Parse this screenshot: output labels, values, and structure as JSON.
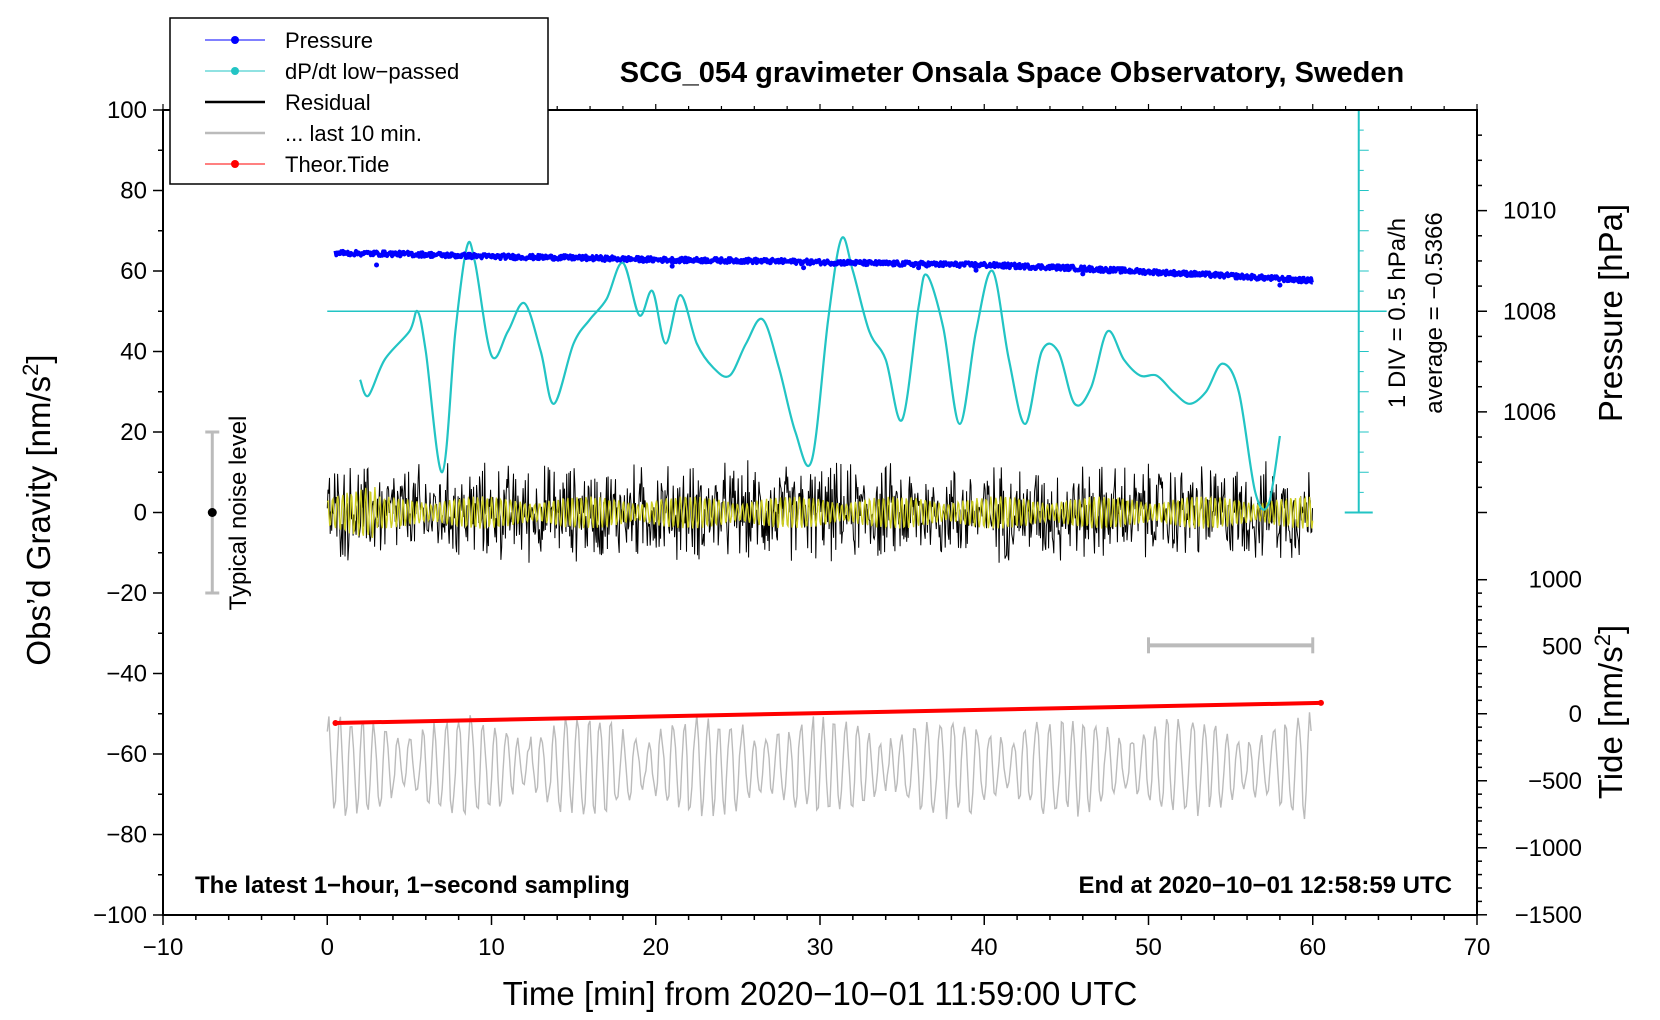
{
  "chart_data": {
    "type": "line",
    "title": "SCG_054 gravimeter Onsala Space Observatory, Sweden",
    "xlabel": "Time [min] from 2020−10−01 11:59:00 UTC",
    "ylabel_left": "Obs’d Gravity [nm/s²]",
    "ylabel_right_pressure": "Pressure [hPa]",
    "ylabel_right_tide": "Tide [nm/s²]",
    "xlim": [
      -10,
      70
    ],
    "ylim": [
      -100,
      100
    ],
    "xticks": [
      -10,
      0,
      10,
      20,
      30,
      40,
      50,
      60,
      70
    ],
    "xtick_labels": [
      "−10",
      "0",
      "10",
      "20",
      "30",
      "40",
      "50",
      "60",
      "70"
    ],
    "yticks": [
      100,
      80,
      60,
      40,
      20,
      0,
      -20,
      -40,
      -60,
      -80,
      -100
    ],
    "ytick_labels": [
      "100",
      "80",
      "60",
      "40",
      "20",
      "0",
      "−20",
      "−40",
      "−60",
      "−80",
      "−100"
    ],
    "pressure_axis": {
      "ticks": [
        1010,
        1008,
        1006
      ],
      "tick_labels": [
        "1010",
        "1008",
        "1006"
      ],
      "gravity_at_1008": 50,
      "gravity_per_hPa": 12.5
    },
    "tide_axis": {
      "ticks": [
        1000,
        500,
        0,
        -500,
        -1000,
        -1500
      ],
      "tick_labels": [
        "1000",
        "500",
        "0",
        "−500",
        "−1000",
        "−1500"
      ],
      "gravity_at_0": -50,
      "gravity_per_unit": 0.0333
    },
    "legend": {
      "position": "top-left",
      "entries": [
        {
          "label": "Pressure",
          "color": "#0000ff",
          "marker": "dot"
        },
        {
          "label": "dP/dt low−passed",
          "color": "#22c4c4",
          "marker": "dot"
        },
        {
          "label": "Residual",
          "color": "#000000",
          "marker": "none"
        },
        {
          "label": "... last 10 min.",
          "color": "#bbbbbb",
          "marker": "none"
        },
        {
          "label": "Theor.Tide",
          "color": "#ff0000",
          "marker": "dot"
        }
      ]
    },
    "dpdt_scale": {
      "label_div": "1 DIV = 0.5 hPa/h",
      "label_avg": "average = −0.5366",
      "zero_gravity": 50
    },
    "noise_bar": {
      "label": "Typical noise level",
      "x": -7,
      "low": -20,
      "high": 20,
      "center": 0
    },
    "ten_min_bar": {
      "x_start": 50,
      "x_end": 60,
      "y": -33
    },
    "notes": {
      "left": "The latest 1−hour, 1−second sampling",
      "right": "End at 2020−10−01 12:58:59 UTC"
    },
    "series": [
      {
        "name": "Pressure",
        "color": "#0000ff",
        "x": [
          0.5,
          5,
          10,
          15,
          20,
          25,
          30,
          35,
          40,
          45,
          50,
          55,
          60
        ],
        "y": [
          64.5,
          64.2,
          63.6,
          63.3,
          62.8,
          62.6,
          62.2,
          61.8,
          61.5,
          60.8,
          59.8,
          58.8,
          57.6
        ],
        "scatter": [
          [
            3,
            61.5
          ],
          [
            21,
            61.2
          ],
          [
            29,
            60.8
          ],
          [
            36,
            60.8
          ],
          [
            39.5,
            60.2
          ],
          [
            46,
            59.3
          ],
          [
            58,
            56.5
          ]
        ]
      },
      {
        "name": "dP/dt low-passed",
        "color": "#22c4c4",
        "x": [
          2,
          2.5,
          3.5,
          5,
          5.5,
          6,
          7,
          7.8,
          8.5,
          9,
          10,
          11,
          12,
          13,
          13.8,
          15,
          16,
          17,
          18,
          19,
          19.8,
          20.6,
          21.5,
          22.5,
          23.5,
          24.5,
          25.5,
          26.5,
          27.5,
          28.5,
          29.5,
          30.5,
          31.3,
          32,
          33,
          34,
          35,
          36,
          36.5,
          37.5,
          38.5,
          39.5,
          40.5,
          41.5,
          42.5,
          43.5,
          44.5,
          45.5,
          46.5,
          47.5,
          48.5,
          49.5,
          50.5,
          51.5,
          52.5,
          53.5,
          54.5,
          55.5,
          56.5,
          57.3,
          58
        ],
        "y": [
          33,
          29,
          38,
          45,
          50,
          40,
          10,
          45,
          66,
          62,
          39,
          45,
          52,
          40,
          27,
          42,
          48,
          53,
          62,
          49,
          55,
          42,
          54,
          42,
          36,
          34,
          42,
          48,
          36,
          20,
          13,
          48,
          68,
          60,
          45,
          38,
          23,
          51,
          59,
          46,
          22,
          45,
          60,
          38,
          22,
          40,
          40,
          27,
          31,
          45,
          38,
          34,
          34,
          30,
          27,
          30,
          37,
          30,
          5,
          2,
          19
        ]
      },
      {
        "name": "Residual",
        "color": "#000000",
        "x_start": 0,
        "x_end": 60,
        "amplitude": 14,
        "center": 0
      },
      {
        "name": "Residual smoothed",
        "color": "#cccc22",
        "x_start": 0,
        "x_end": 60,
        "amplitude": 4,
        "center": 0
      },
      {
        "name": "... last 10 min.",
        "color": "#bbbbbb",
        "x_start": 0,
        "x_end": 60,
        "amplitude": 12,
        "center": -63
      },
      {
        "name": "Theor.Tide",
        "color": "#ff0000",
        "x": [
          0.5,
          60.5
        ],
        "y": [
          -52.3,
          -47.3
        ]
      }
    ]
  },
  "colors": {
    "pressure": "#0000ff",
    "dpdt": "#22c4c4",
    "residual": "#000000",
    "residual_smooth": "#cccc22",
    "last10": "#bbbbbb",
    "tide": "#ff0000"
  }
}
